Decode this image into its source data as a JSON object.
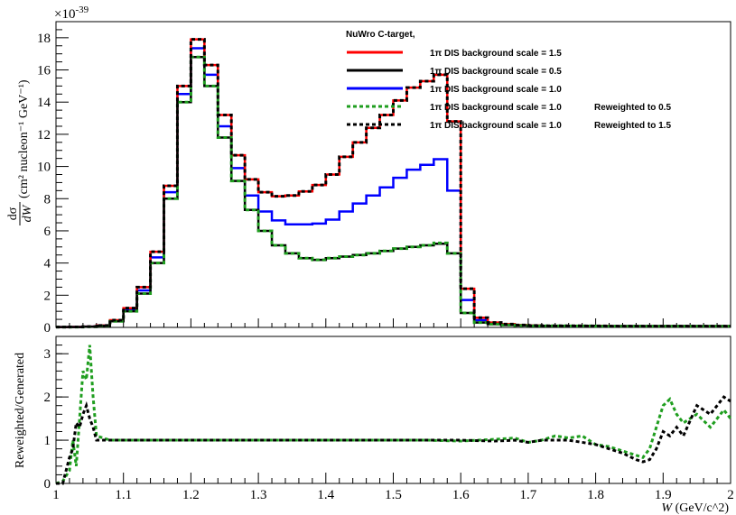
{
  "chart_data": [
    {
      "type": "line",
      "panel": "top",
      "title": "",
      "xlabel": "",
      "ylabel_numerator": "dσ",
      "ylabel_denominator": "dW",
      "ylabel_units": "(cm² nucleon⁻¹ GeV⁻¹)",
      "ymultiplier": "×10",
      "ymultiplier_exp": "-39",
      "xlim": [
        1.0,
        2.0
      ],
      "ylim": [
        0,
        19
      ],
      "yticks": [
        "0",
        "2",
        "4",
        "6",
        "8",
        "10",
        "12",
        "14",
        "16",
        "18"
      ],
      "legend_header": "NuWro C-target,",
      "legend_position": "top-right",
      "x_edges": [
        1.0,
        1.02,
        1.04,
        1.06,
        1.08,
        1.1,
        1.12,
        1.14,
        1.16,
        1.18,
        1.2,
        1.22,
        1.24,
        1.26,
        1.28,
        1.3,
        1.32,
        1.34,
        1.36,
        1.38,
        1.4,
        1.42,
        1.44,
        1.46,
        1.48,
        1.5,
        1.52,
        1.54,
        1.56,
        1.58,
        1.6,
        1.62,
        1.64,
        1.66,
        1.68,
        1.7,
        1.72,
        1.74,
        1.76,
        1.78,
        1.8,
        1.82,
        1.84,
        1.86,
        1.88,
        1.9,
        1.92,
        1.94,
        1.96,
        1.98,
        2.0
      ],
      "series": [
        {
          "name": "1π DIS background scale = 1.5",
          "color": "#ff0000",
          "dashed": false,
          "values": [
            0.02,
            0.03,
            0.05,
            0.12,
            0.45,
            1.2,
            2.5,
            4.7,
            8.8,
            15.0,
            17.9,
            16.3,
            13.2,
            10.7,
            9.2,
            8.4,
            8.15,
            8.2,
            8.45,
            8.85,
            9.5,
            10.6,
            11.5,
            12.4,
            13.2,
            14.1,
            14.9,
            15.3,
            15.7,
            12.8,
            2.4,
            0.6,
            0.3,
            0.2,
            0.15,
            0.12,
            0.1,
            0.1,
            0.1,
            0.09,
            0.09,
            0.08,
            0.08,
            0.08,
            0.08,
            0.08,
            0.08,
            0.08,
            0.08,
            0.08
          ]
        },
        {
          "name": "1π DIS background scale = 0.5",
          "color": "#000000",
          "dashed": false,
          "values": [
            0.02,
            0.02,
            0.04,
            0.1,
            0.38,
            1.0,
            2.1,
            4.0,
            8.0,
            14.0,
            16.8,
            15.0,
            11.8,
            9.1,
            7.3,
            6.0,
            5.1,
            4.6,
            4.3,
            4.2,
            4.3,
            4.4,
            4.5,
            4.6,
            4.75,
            4.9,
            5.0,
            5.1,
            5.2,
            4.6,
            0.9,
            0.3,
            0.2,
            0.15,
            0.12,
            0.1,
            0.1,
            0.1,
            0.09,
            0.09,
            0.08,
            0.08,
            0.08,
            0.08,
            0.08,
            0.08,
            0.08,
            0.08,
            0.08,
            0.08
          ]
        },
        {
          "name": "1π DIS background scale = 1.0",
          "color": "#0000ff",
          "dashed": false,
          "values": [
            0.02,
            0.03,
            0.05,
            0.11,
            0.42,
            1.1,
            2.3,
            4.35,
            8.4,
            14.5,
            17.35,
            15.7,
            12.5,
            9.9,
            8.2,
            7.2,
            6.65,
            6.4,
            6.4,
            6.45,
            6.7,
            7.2,
            7.7,
            8.2,
            8.7,
            9.3,
            9.8,
            10.1,
            10.45,
            8.5,
            1.7,
            0.45,
            0.25,
            0.18,
            0.13,
            0.11,
            0.1,
            0.1,
            0.09,
            0.09,
            0.08,
            0.08,
            0.08,
            0.08,
            0.08,
            0.08,
            0.08,
            0.08,
            0.08,
            0.08
          ]
        },
        {
          "name": "1π DIS background scale = 1.0",
          "note": "Reweighted to 0.5",
          "color": "#1f9e1f",
          "dashed": true,
          "values": [
            0.02,
            0.02,
            0.04,
            0.1,
            0.38,
            1.0,
            2.1,
            4.0,
            8.0,
            14.0,
            16.8,
            15.0,
            11.8,
            9.1,
            7.3,
            6.0,
            5.1,
            4.6,
            4.3,
            4.2,
            4.3,
            4.4,
            4.5,
            4.6,
            4.75,
            4.9,
            5.0,
            5.1,
            5.25,
            4.6,
            0.9,
            0.3,
            0.2,
            0.15,
            0.12,
            0.1,
            0.1,
            0.1,
            0.09,
            0.09,
            0.08,
            0.08,
            0.08,
            0.08,
            0.08,
            0.08,
            0.08,
            0.08,
            0.08,
            0.08
          ]
        },
        {
          "name": "1π DIS background scale = 1.0",
          "note": "Reweighted to 1.5",
          "color": "#000000",
          "dashed": true,
          "values": [
            0.02,
            0.03,
            0.05,
            0.12,
            0.45,
            1.2,
            2.5,
            4.7,
            8.8,
            15.0,
            17.9,
            16.3,
            13.2,
            10.7,
            9.2,
            8.4,
            8.15,
            8.2,
            8.45,
            8.85,
            9.5,
            10.6,
            11.5,
            12.4,
            13.2,
            14.1,
            14.9,
            15.3,
            15.7,
            12.8,
            2.4,
            0.6,
            0.3,
            0.2,
            0.15,
            0.12,
            0.1,
            0.1,
            0.1,
            0.09,
            0.09,
            0.08,
            0.08,
            0.08,
            0.08,
            0.08,
            0.08,
            0.08,
            0.08,
            0.08
          ]
        }
      ]
    },
    {
      "type": "line",
      "panel": "bottom",
      "ylabel": "Reweighted/Generated",
      "xlabel_var": "W",
      "xlabel_units": "(GeV/c^2)",
      "xlim": [
        1.0,
        2.0
      ],
      "ylim": [
        0,
        3.4
      ],
      "xticks": [
        "1",
        "1.1",
        "1.2",
        "1.3",
        "1.4",
        "1.5",
        "1.6",
        "1.7",
        "1.8",
        "1.9",
        "2"
      ],
      "yticks": [
        "0",
        "1",
        "2",
        "3"
      ],
      "series": [
        {
          "name": "Reweighted to 0.5",
          "color": "#1f9e1f",
          "dashed": true,
          "x": [
            1.0,
            1.01,
            1.02,
            1.025,
            1.03,
            1.035,
            1.04,
            1.045,
            1.05,
            1.055,
            1.06,
            1.07,
            1.08,
            1.1,
            1.15,
            1.2,
            1.3,
            1.4,
            1.5,
            1.55,
            1.6,
            1.65,
            1.68,
            1.7,
            1.72,
            1.74,
            1.76,
            1.78,
            1.8,
            1.82,
            1.84,
            1.86,
            1.87,
            1.88,
            1.89,
            1.9,
            1.91,
            1.92,
            1.93,
            1.95,
            1.97,
            1.99,
            2.0
          ],
          "y": [
            0.0,
            0.05,
            0.3,
            1.0,
            0.4,
            1.5,
            2.6,
            2.4,
            3.2,
            2.0,
            1.1,
            1.05,
            1.0,
            1.0,
            1.0,
            1.0,
            1.0,
            1.0,
            1.0,
            1.0,
            0.98,
            1.02,
            1.05,
            0.95,
            1.0,
            1.1,
            1.05,
            1.1,
            0.9,
            0.85,
            0.75,
            0.65,
            0.6,
            0.8,
            1.3,
            1.8,
            1.95,
            1.6,
            1.4,
            1.6,
            1.3,
            1.7,
            1.5
          ]
        },
        {
          "name": "Reweighted to 1.5",
          "color": "#000000",
          "dashed": true,
          "x": [
            1.0,
            1.01,
            1.02,
            1.025,
            1.03,
            1.035,
            1.04,
            1.045,
            1.05,
            1.055,
            1.06,
            1.07,
            1.08,
            1.1,
            1.15,
            1.2,
            1.3,
            1.4,
            1.5,
            1.55,
            1.6,
            1.65,
            1.68,
            1.7,
            1.72,
            1.74,
            1.76,
            1.78,
            1.8,
            1.82,
            1.84,
            1.86,
            1.87,
            1.88,
            1.89,
            1.9,
            1.91,
            1.92,
            1.93,
            1.95,
            1.97,
            1.99,
            2.0
          ],
          "y": [
            0.0,
            0.0,
            0.6,
            0.8,
            1.4,
            1.3,
            1.6,
            1.8,
            1.5,
            1.3,
            1.0,
            1.0,
            1.0,
            1.0,
            1.0,
            1.0,
            1.0,
            1.0,
            1.0,
            1.0,
            1.0,
            0.98,
            1.0,
            0.95,
            1.0,
            1.0,
            1.0,
            0.95,
            0.9,
            0.8,
            0.7,
            0.55,
            0.5,
            0.55,
            0.8,
            1.2,
            1.1,
            1.3,
            1.1,
            1.8,
            1.6,
            2.0,
            1.9
          ]
        }
      ]
    }
  ]
}
